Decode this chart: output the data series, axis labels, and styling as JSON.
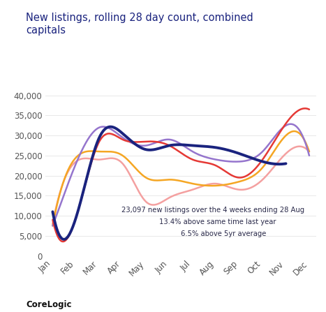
{
  "title": "New listings, rolling 28 day count, combined\ncapitals",
  "title_color": "#1a237e",
  "months": [
    "Jan",
    "Feb",
    "Mar",
    "Apr",
    "May",
    "Jun",
    "Jul",
    "Aug",
    "Sep",
    "Oct",
    "Nov",
    "Dec"
  ],
  "annotation_line1": "23,097 new listings over the 4 weeks ending 28 Aug",
  "annotation_line2": "13.4% above same time last year",
  "annotation_line3": "6.5% above 5yr average",
  "annotation_color": "#2a2a4a",
  "corelogic_label": "CoreLogic",
  "ylim": [
    0,
    42000
  ],
  "yticks": [
    0,
    5000,
    10000,
    15000,
    20000,
    25000,
    30000,
    35000,
    40000
  ],
  "background_color": "#ffffff",
  "lines": {
    "dark_navy": {
      "color": "#1a237e",
      "linewidth": 2.8,
      "zorder": 5,
      "values": [
        11000,
        9500,
        29500,
        30500,
        26500,
        27500,
        27500,
        27000,
        25500,
        23500,
        23000,
        null
      ]
    },
    "red": {
      "color": "#e53935",
      "linewidth": 1.8,
      "zorder": 4,
      "values": [
        9000,
        9500,
        28500,
        29000,
        28500,
        27500,
        24000,
        22500,
        19500,
        24000,
        33000,
        36500
      ]
    },
    "purple_light": {
      "color": "#9575cd",
      "linewidth": 1.8,
      "zorder": 3,
      "values": [
        7500,
        23000,
        32000,
        29500,
        27500,
        29000,
        26000,
        24000,
        23500,
        26000,
        32500,
        25000
      ]
    },
    "orange": {
      "color": "#f5a623",
      "linewidth": 1.8,
      "zorder": 2,
      "values": [
        7500,
        24500,
        26000,
        25000,
        19500,
        19000,
        18000,
        17500,
        18500,
        22000,
        30000,
        26000
      ]
    },
    "pink": {
      "color": "#f4a0a0",
      "linewidth": 1.8,
      "zorder": 1,
      "values": [
        8000,
        23500,
        24000,
        23000,
        13500,
        14500,
        16500,
        18000,
        16500,
        19000,
        25500,
        26000
      ]
    }
  }
}
